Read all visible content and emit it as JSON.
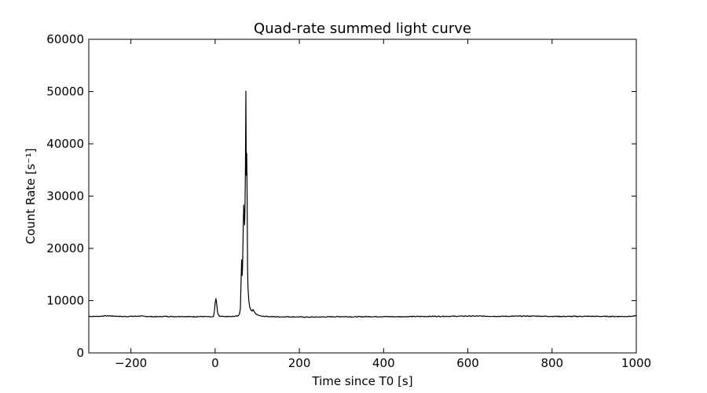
{
  "chart_data": {
    "type": "line",
    "title": "Quad-rate summed light curve",
    "xlabel": "Time since T0 [s]",
    "ylabel": "Count Rate [s⁻¹]",
    "xlim": [
      -300,
      1000
    ],
    "ylim": [
      0,
      60000
    ],
    "xticks": [
      -200,
      0,
      200,
      400,
      600,
      800,
      1000
    ],
    "xtick_labels": [
      "−200",
      "0",
      "200",
      "400",
      "600",
      "800",
      "1000"
    ],
    "yticks": [
      0,
      10000,
      20000,
      30000,
      40000,
      50000,
      60000
    ],
    "ytick_labels": [
      "0",
      "10000",
      "20000",
      "30000",
      "40000",
      "50000",
      "60000"
    ],
    "grid": false,
    "line_color": "#000000",
    "baseline": 6950,
    "series": [
      {
        "points": [
          [
            -300,
            7000
          ],
          [
            -280,
            6980
          ],
          [
            -260,
            7100
          ],
          [
            -240,
            7050
          ],
          [
            -220,
            6960
          ],
          [
            -200,
            6990
          ],
          [
            -180,
            7040
          ],
          [
            -160,
            6970
          ],
          [
            -140,
            6920
          ],
          [
            -120,
            6990
          ],
          [
            -100,
            6950
          ],
          [
            -80,
            6980
          ],
          [
            -60,
            6930
          ],
          [
            -40,
            6960
          ],
          [
            -20,
            6940
          ],
          [
            -10,
            6900
          ],
          [
            -4,
            6950
          ],
          [
            -2,
            7800
          ],
          [
            0,
            9500
          ],
          [
            2,
            10400
          ],
          [
            4,
            9200
          ],
          [
            6,
            7600
          ],
          [
            10,
            7000
          ],
          [
            20,
            6950
          ],
          [
            40,
            6950
          ],
          [
            55,
            7100
          ],
          [
            58,
            7500
          ],
          [
            60,
            8500
          ],
          [
            62,
            15000
          ],
          [
            63,
            17800
          ],
          [
            64,
            14800
          ],
          [
            65,
            16000
          ],
          [
            67,
            25000
          ],
          [
            68,
            28300
          ],
          [
            69,
            26500
          ],
          [
            70,
            24500
          ],
          [
            71,
            28000
          ],
          [
            72,
            36000
          ],
          [
            73,
            50100
          ],
          [
            74,
            34000
          ],
          [
            75,
            38200
          ],
          [
            76,
            30000
          ],
          [
            77,
            16500
          ],
          [
            78,
            12500
          ],
          [
            80,
            10000
          ],
          [
            82,
            8800
          ],
          [
            85,
            8200
          ],
          [
            88,
            8000
          ],
          [
            90,
            8300
          ],
          [
            93,
            7900
          ],
          [
            96,
            7500
          ],
          [
            100,
            7300
          ],
          [
            105,
            7150
          ],
          [
            110,
            7050
          ],
          [
            120,
            7000
          ],
          [
            130,
            6950
          ],
          [
            150,
            6900
          ],
          [
            170,
            6920
          ],
          [
            200,
            6880
          ],
          [
            220,
            6850
          ],
          [
            250,
            6870
          ],
          [
            280,
            6920
          ],
          [
            300,
            6950
          ],
          [
            330,
            6900
          ],
          [
            360,
            6940
          ],
          [
            400,
            6950
          ],
          [
            430,
            6920
          ],
          [
            460,
            6950
          ],
          [
            500,
            6980
          ],
          [
            540,
            7000
          ],
          [
            580,
            7020
          ],
          [
            600,
            7050
          ],
          [
            640,
            7030
          ],
          [
            680,
            7000
          ],
          [
            720,
            7030
          ],
          [
            760,
            7050
          ],
          [
            800,
            6990
          ],
          [
            840,
            6980
          ],
          [
            880,
            7000
          ],
          [
            920,
            6990
          ],
          [
            960,
            6970
          ],
          [
            990,
            7000
          ],
          [
            1000,
            7100
          ]
        ]
      }
    ]
  }
}
